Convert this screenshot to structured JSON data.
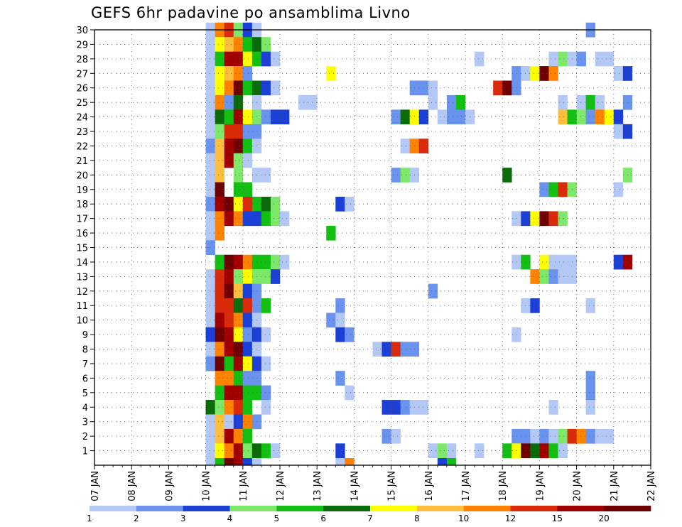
{
  "chart_data": {
    "type": "heatmap",
    "title": "GEFS 6hr padavine po ansamblima Livno",
    "xlabel": "",
    "ylabel": "",
    "x_tick_labels": [
      "07 JAN",
      "08 JAN",
      "09 JAN",
      "10 JAN",
      "11 JAN",
      "12 JAN",
      "13 JAN",
      "14 JAN",
      "15 JAN",
      "16 JAN",
      "17 JAN",
      "18 JAN",
      "19 JAN",
      "20 JAN",
      "21 JAN",
      "22 JAN"
    ],
    "y_tick_labels": [
      "1",
      "2",
      "3",
      "4",
      "5",
      "6",
      "7",
      "8",
      "9",
      "10",
      "11",
      "12",
      "13",
      "14",
      "15",
      "16",
      "17",
      "18",
      "19",
      "20",
      "21",
      "22",
      "23",
      "24",
      "25",
      "26",
      "27",
      "28",
      "29",
      "30"
    ],
    "legend_labels": [
      "1",
      "2",
      "3",
      "4",
      "5",
      "6",
      "7",
      "8",
      "10",
      "12",
      "15",
      "20"
    ],
    "color_scale": [
      "#b4c8f5",
      "#6a93ee",
      "#1c3fd6",
      "#7de86a",
      "#12bf12",
      "#0b6b0b",
      "#ffff00",
      "#ffbe3c",
      "#ff8200",
      "#d92a0a",
      "#a00000",
      "#6e0000"
    ],
    "grid": true,
    "cells": [
      [
        30,
        12,
        1
      ],
      [
        30,
        13,
        9
      ],
      [
        30,
        14,
        10
      ],
      [
        30,
        15,
        4
      ],
      [
        30,
        16,
        3
      ],
      [
        30,
        17,
        1
      ],
      [
        30,
        53,
        2
      ],
      [
        29,
        12,
        1
      ],
      [
        29,
        13,
        7
      ],
      [
        29,
        14,
        8
      ],
      [
        29,
        15,
        9
      ],
      [
        29,
        16,
        5
      ],
      [
        29,
        17,
        6
      ],
      [
        29,
        18,
        4
      ],
      [
        28,
        12,
        1
      ],
      [
        28,
        13,
        5
      ],
      [
        28,
        14,
        11
      ],
      [
        28,
        15,
        11
      ],
      [
        28,
        16,
        7
      ],
      [
        28,
        17,
        5
      ],
      [
        28,
        18,
        3
      ],
      [
        28,
        19,
        1
      ],
      [
        28,
        41,
        1
      ],
      [
        28,
        49,
        1
      ],
      [
        28,
        50,
        4
      ],
      [
        28,
        51,
        1
      ],
      [
        28,
        52,
        2
      ],
      [
        28,
        54,
        1
      ],
      [
        28,
        55,
        1
      ],
      [
        27,
        12,
        1
      ],
      [
        27,
        13,
        7
      ],
      [
        27,
        14,
        8
      ],
      [
        27,
        15,
        9
      ],
      [
        27,
        16,
        2
      ],
      [
        27,
        25,
        7
      ],
      [
        27,
        45,
        2
      ],
      [
        27,
        46,
        1
      ],
      [
        27,
        47,
        7
      ],
      [
        27,
        48,
        12
      ],
      [
        27,
        49,
        9
      ],
      [
        27,
        56,
        1
      ],
      [
        27,
        57,
        3
      ],
      [
        26,
        12,
        1
      ],
      [
        26,
        13,
        7
      ],
      [
        26,
        14,
        9
      ],
      [
        26,
        15,
        12
      ],
      [
        26,
        16,
        5
      ],
      [
        26,
        17,
        6
      ],
      [
        26,
        18,
        3
      ],
      [
        26,
        19,
        1
      ],
      [
        26,
        34,
        2
      ],
      [
        26,
        35,
        2
      ],
      [
        26,
        36,
        1
      ],
      [
        26,
        43,
        10
      ],
      [
        26,
        44,
        12
      ],
      [
        26,
        45,
        2
      ],
      [
        25,
        12,
        1
      ],
      [
        25,
        13,
        9
      ],
      [
        25,
        14,
        2
      ],
      [
        25,
        15,
        6
      ],
      [
        25,
        17,
        1
      ],
      [
        25,
        22,
        1
      ],
      [
        25,
        23,
        1
      ],
      [
        25,
        36,
        1
      ],
      [
        25,
        38,
        2
      ],
      [
        25,
        39,
        5
      ],
      [
        25,
        50,
        1
      ],
      [
        25,
        52,
        1
      ],
      [
        25,
        53,
        5
      ],
      [
        25,
        54,
        1
      ],
      [
        25,
        57,
        2
      ],
      [
        24,
        12,
        1
      ],
      [
        24,
        13,
        6
      ],
      [
        24,
        14,
        5
      ],
      [
        24,
        15,
        11
      ],
      [
        24,
        16,
        7
      ],
      [
        24,
        17,
        4
      ],
      [
        24,
        18,
        2
      ],
      [
        24,
        19,
        3
      ],
      [
        24,
        20,
        3
      ],
      [
        24,
        32,
        2
      ],
      [
        24,
        33,
        6
      ],
      [
        24,
        34,
        7
      ],
      [
        24,
        35,
        3
      ],
      [
        24,
        37,
        1
      ],
      [
        24,
        38,
        2
      ],
      [
        24,
        39,
        2
      ],
      [
        24,
        40,
        1
      ],
      [
        24,
        50,
        8
      ],
      [
        24,
        51,
        5
      ],
      [
        24,
        52,
        4
      ],
      [
        24,
        53,
        2
      ],
      [
        24,
        54,
        9
      ],
      [
        24,
        55,
        7
      ],
      [
        24,
        56,
        3
      ],
      [
        23,
        12,
        1
      ],
      [
        23,
        13,
        4
      ],
      [
        23,
        14,
        10
      ],
      [
        23,
        15,
        10
      ],
      [
        23,
        16,
        2
      ],
      [
        23,
        17,
        2
      ],
      [
        23,
        56,
        1
      ],
      [
        23,
        57,
        3
      ],
      [
        22,
        12,
        2
      ],
      [
        22,
        13,
        8
      ],
      [
        22,
        14,
        11
      ],
      [
        22,
        15,
        12
      ],
      [
        22,
        16,
        5
      ],
      [
        22,
        17,
        1
      ],
      [
        22,
        33,
        1
      ],
      [
        22,
        34,
        9
      ],
      [
        22,
        35,
        10
      ],
      [
        21,
        12,
        1
      ],
      [
        21,
        13,
        8
      ],
      [
        21,
        14,
        11
      ],
      [
        21,
        15,
        4
      ],
      [
        21,
        16,
        1
      ],
      [
        20,
        12,
        1
      ],
      [
        20,
        13,
        8
      ],
      [
        20,
        15,
        4
      ],
      [
        20,
        17,
        1
      ],
      [
        20,
        18,
        1
      ],
      [
        20,
        32,
        2
      ],
      [
        20,
        33,
        4
      ],
      [
        20,
        34,
        1
      ],
      [
        20,
        44,
        6
      ],
      [
        20,
        57,
        4
      ],
      [
        19,
        12,
        1
      ],
      [
        19,
        13,
        12
      ],
      [
        19,
        15,
        5
      ],
      [
        19,
        16,
        5
      ],
      [
        19,
        48,
        2
      ],
      [
        19,
        49,
        5
      ],
      [
        19,
        50,
        10
      ],
      [
        19,
        51,
        4
      ],
      [
        19,
        56,
        1
      ],
      [
        18,
        12,
        2
      ],
      [
        18,
        13,
        11
      ],
      [
        18,
        14,
        12
      ],
      [
        18,
        15,
        7
      ],
      [
        18,
        16,
        10
      ],
      [
        18,
        17,
        5
      ],
      [
        18,
        18,
        6
      ],
      [
        18,
        19,
        4
      ],
      [
        18,
        26,
        3
      ],
      [
        18,
        27,
        1
      ],
      [
        17,
        12,
        1
      ],
      [
        17,
        13,
        9
      ],
      [
        17,
        14,
        11
      ],
      [
        17,
        15,
        9
      ],
      [
        17,
        16,
        3
      ],
      [
        17,
        17,
        3
      ],
      [
        17,
        18,
        5
      ],
      [
        17,
        19,
        4
      ],
      [
        17,
        20,
        1
      ],
      [
        17,
        45,
        1
      ],
      [
        17,
        46,
        3
      ],
      [
        17,
        47,
        7
      ],
      [
        17,
        48,
        12
      ],
      [
        17,
        49,
        10
      ],
      [
        17,
        50,
        4
      ],
      [
        16,
        12,
        1
      ],
      [
        16,
        13,
        9
      ],
      [
        16,
        25,
        5
      ],
      [
        15,
        12,
        2
      ],
      [
        14,
        13,
        5
      ],
      [
        14,
        14,
        12
      ],
      [
        14,
        15,
        11
      ],
      [
        14,
        16,
        9
      ],
      [
        14,
        17,
        5
      ],
      [
        14,
        18,
        5
      ],
      [
        14,
        19,
        4
      ],
      [
        14,
        20,
        1
      ],
      [
        14,
        45,
        1
      ],
      [
        14,
        46,
        5
      ],
      [
        14,
        48,
        7
      ],
      [
        14,
        49,
        1
      ],
      [
        14,
        50,
        1
      ],
      [
        14,
        51,
        1
      ],
      [
        14,
        56,
        3
      ],
      [
        14,
        57,
        11
      ],
      [
        13,
        12,
        1
      ],
      [
        13,
        13,
        10
      ],
      [
        13,
        14,
        11
      ],
      [
        13,
        15,
        4
      ],
      [
        13,
        16,
        7
      ],
      [
        13,
        17,
        4
      ],
      [
        13,
        18,
        4
      ],
      [
        13,
        19,
        3
      ],
      [
        13,
        47,
        9
      ],
      [
        13,
        48,
        4
      ],
      [
        13,
        49,
        2
      ],
      [
        13,
        50,
        1
      ],
      [
        13,
        51,
        1
      ],
      [
        12,
        12,
        1
      ],
      [
        12,
        13,
        10
      ],
      [
        12,
        14,
        12
      ],
      [
        12,
        15,
        8
      ],
      [
        12,
        16,
        3
      ],
      [
        12,
        17,
        2
      ],
      [
        12,
        36,
        2
      ],
      [
        11,
        12,
        1
      ],
      [
        11,
        13,
        10
      ],
      [
        11,
        14,
        10
      ],
      [
        11,
        15,
        6
      ],
      [
        11,
        16,
        10
      ],
      [
        11,
        17,
        2
      ],
      [
        11,
        18,
        5
      ],
      [
        11,
        26,
        2
      ],
      [
        11,
        46,
        1
      ],
      [
        11,
        47,
        3
      ],
      [
        11,
        53,
        1
      ],
      [
        10,
        12,
        1
      ],
      [
        10,
        13,
        11
      ],
      [
        10,
        14,
        10
      ],
      [
        10,
        15,
        9
      ],
      [
        10,
        16,
        3
      ],
      [
        10,
        17,
        1
      ],
      [
        10,
        25,
        2
      ],
      [
        10,
        26,
        1
      ],
      [
        9,
        12,
        3
      ],
      [
        9,
        13,
        12
      ],
      [
        9,
        14,
        11
      ],
      [
        9,
        15,
        7
      ],
      [
        9,
        16,
        2
      ],
      [
        9,
        17,
        3
      ],
      [
        9,
        18,
        1
      ],
      [
        9,
        26,
        3
      ],
      [
        9,
        27,
        2
      ],
      [
        9,
        45,
        1
      ],
      [
        8,
        12,
        1
      ],
      [
        8,
        13,
        9
      ],
      [
        8,
        14,
        11
      ],
      [
        8,
        15,
        12
      ],
      [
        8,
        16,
        3
      ],
      [
        8,
        17,
        1
      ],
      [
        8,
        30,
        1
      ],
      [
        8,
        31,
        3
      ],
      [
        8,
        32,
        10
      ],
      [
        8,
        33,
        2
      ],
      [
        8,
        34,
        2
      ],
      [
        7,
        12,
        2
      ],
      [
        7,
        13,
        12
      ],
      [
        7,
        14,
        5
      ],
      [
        7,
        15,
        11
      ],
      [
        7,
        16,
        7
      ],
      [
        7,
        17,
        3
      ],
      [
        7,
        18,
        1
      ],
      [
        6,
        13,
        9
      ],
      [
        6,
        14,
        9
      ],
      [
        6,
        15,
        5
      ],
      [
        6,
        16,
        2
      ],
      [
        6,
        17,
        2
      ],
      [
        6,
        26,
        2
      ],
      [
        6,
        53,
        2
      ],
      [
        5,
        13,
        5
      ],
      [
        5,
        14,
        11
      ],
      [
        5,
        15,
        11
      ],
      [
        5,
        16,
        5
      ],
      [
        5,
        17,
        5
      ],
      [
        5,
        18,
        2
      ],
      [
        5,
        27,
        1
      ],
      [
        5,
        53,
        2
      ],
      [
        4,
        12,
        6
      ],
      [
        4,
        13,
        4
      ],
      [
        4,
        14,
        9
      ],
      [
        4,
        15,
        10
      ],
      [
        4,
        16,
        5
      ],
      [
        4,
        18,
        1
      ],
      [
        4,
        31,
        3
      ],
      [
        4,
        32,
        3
      ],
      [
        4,
        33,
        2
      ],
      [
        4,
        34,
        1
      ],
      [
        4,
        35,
        1
      ],
      [
        4,
        49,
        1
      ],
      [
        4,
        53,
        1
      ],
      [
        3,
        12,
        1
      ],
      [
        3,
        13,
        8
      ],
      [
        3,
        14,
        1
      ],
      [
        3,
        15,
        3
      ],
      [
        3,
        16,
        9
      ],
      [
        3,
        17,
        2
      ],
      [
        2,
        12,
        1
      ],
      [
        2,
        13,
        8
      ],
      [
        2,
        14,
        11
      ],
      [
        2,
        15,
        9
      ],
      [
        2,
        16,
        5
      ],
      [
        2,
        31,
        2
      ],
      [
        2,
        32,
        1
      ],
      [
        2,
        45,
        2
      ],
      [
        2,
        46,
        2
      ],
      [
        2,
        47,
        1
      ],
      [
        2,
        48,
        2
      ],
      [
        2,
        49,
        1
      ],
      [
        2,
        50,
        4
      ],
      [
        2,
        51,
        10
      ],
      [
        2,
        52,
        9
      ],
      [
        2,
        53,
        2
      ],
      [
        2,
        54,
        1
      ],
      [
        2,
        55,
        1
      ],
      [
        1,
        12,
        1
      ],
      [
        1,
        13,
        7
      ],
      [
        1,
        14,
        9
      ],
      [
        1,
        15,
        11
      ],
      [
        1,
        16,
        4
      ],
      [
        1,
        17,
        6
      ],
      [
        1,
        18,
        5
      ],
      [
        1,
        19,
        1
      ],
      [
        1,
        26,
        3
      ],
      [
        1,
        36,
        1
      ],
      [
        1,
        37,
        4
      ],
      [
        1,
        38,
        1
      ],
      [
        1,
        41,
        1
      ],
      [
        1,
        44,
        5
      ],
      [
        1,
        45,
        7
      ],
      [
        1,
        46,
        12
      ],
      [
        1,
        47,
        6
      ],
      [
        1,
        48,
        11
      ],
      [
        1,
        49,
        5
      ],
      [
        1,
        50,
        1
      ],
      [
        0,
        12,
        1
      ],
      [
        0,
        13,
        5
      ],
      [
        0,
        14,
        12
      ],
      [
        0,
        15,
        11
      ],
      [
        0,
        16,
        3
      ],
      [
        0,
        17,
        1
      ],
      [
        0,
        26,
        1
      ],
      [
        0,
        27,
        9
      ],
      [
        0,
        37,
        3
      ],
      [
        0,
        38,
        5
      ]
    ]
  }
}
